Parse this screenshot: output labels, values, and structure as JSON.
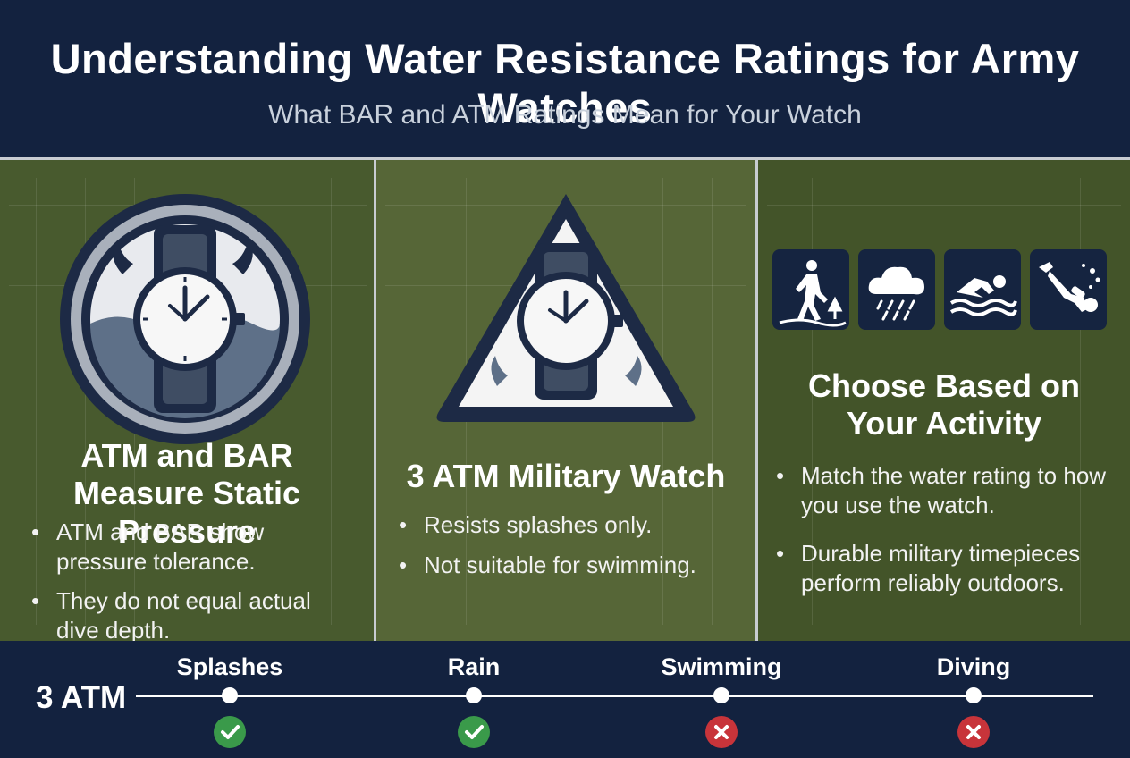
{
  "header": {
    "title": "Understanding Water Resistance Ratings for Army Watches",
    "subtitle": "What BAR and ATM Ratings Mean for Your Watch"
  },
  "panels": [
    {
      "heading": "ATM and BAR Measure Static Pressure",
      "icon": "watch-in-water-icon",
      "bullets": [
        "ATM and BAR show pressure tolerance.",
        "They do not equal actual dive depth."
      ]
    },
    {
      "heading": "3 ATM Military Watch",
      "icon": "warning-triangle-watch-icon",
      "bullets": [
        "Resists splashes only.",
        "Not suitable for swimming."
      ]
    },
    {
      "heading": "Choose Based on Your Activity",
      "icons": [
        "hiking-icon",
        "rain-icon",
        "swimming-icon",
        "diving-icon"
      ],
      "bullets": [
        "Match the water rating to how you use the watch.",
        "Durable military timepieces perform reliably outdoors."
      ]
    }
  ],
  "timeline": {
    "rating": "3 ATM",
    "items": [
      {
        "label": "Splashes",
        "status": "check-icon",
        "suitable": true
      },
      {
        "label": "Rain",
        "status": "check-icon",
        "suitable": true
      },
      {
        "label": "Swimming",
        "status": "cross-icon",
        "suitable": false
      },
      {
        "label": "Diving",
        "status": "cross-icon",
        "suitable": false
      }
    ]
  },
  "colors": {
    "navy": "#13223f",
    "olive": "#4d5e30",
    "check_green": "#3a9a4a",
    "cross_red": "#c8343a"
  }
}
